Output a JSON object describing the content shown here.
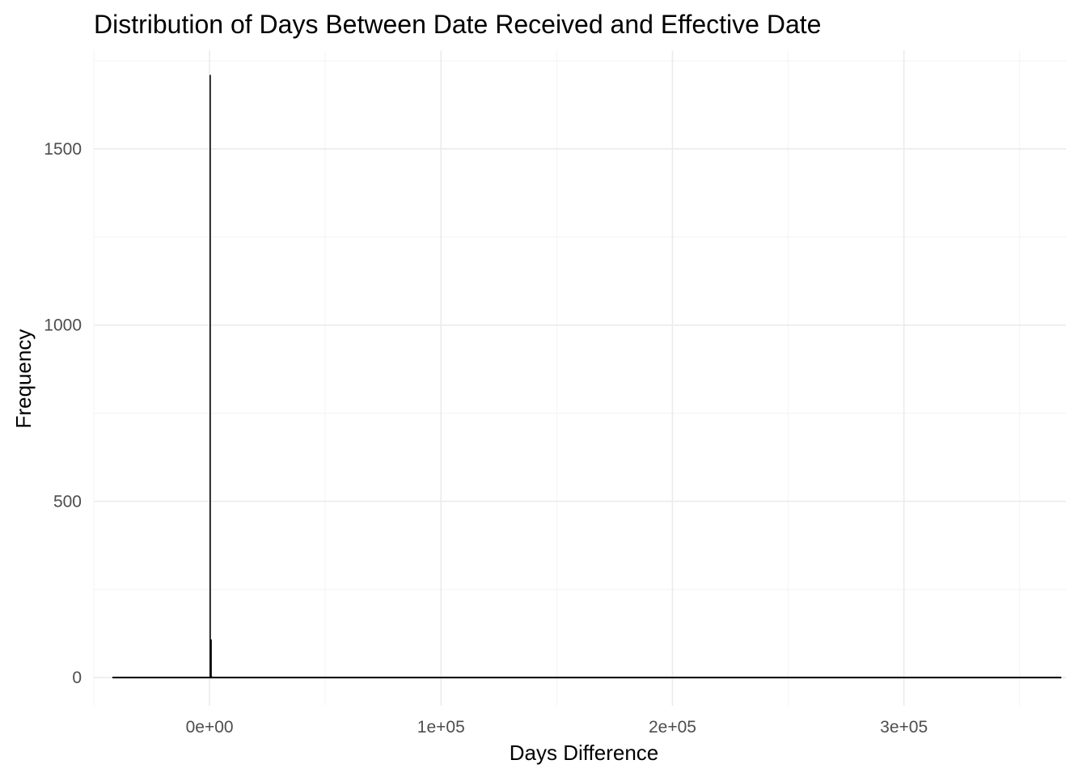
{
  "chart_data": {
    "type": "bar",
    "title": "Distribution of Days Between Date Received and Effective Date",
    "xlabel": "Days Difference",
    "ylabel": "Frequency",
    "xlim": [
      -50000,
      370000
    ],
    "ylim": [
      -80,
      1780
    ],
    "x_ticks": [
      0,
      100000,
      200000,
      300000
    ],
    "x_tick_labels": [
      "0e+00",
      "1e+05",
      "2e+05",
      "3e+05"
    ],
    "x_minor_ticks": [
      -50000,
      50000,
      150000,
      250000,
      350000
    ],
    "y_ticks": [
      0,
      500,
      1000,
      1500
    ],
    "y_tick_labels": [
      "0",
      "500",
      "1000",
      "1500"
    ],
    "y_minor_ticks": [
      250,
      750,
      1250,
      1750
    ],
    "grid": true,
    "legend": "none",
    "data_range": [
      -42000,
      368000
    ],
    "bins": [
      {
        "x0": 0,
        "x1": 400,
        "value": 1710
      },
      {
        "x0": 400,
        "x1": 800,
        "value": 108
      },
      {
        "x0": 800,
        "x1": 1200,
        "value": 3
      }
    ]
  }
}
